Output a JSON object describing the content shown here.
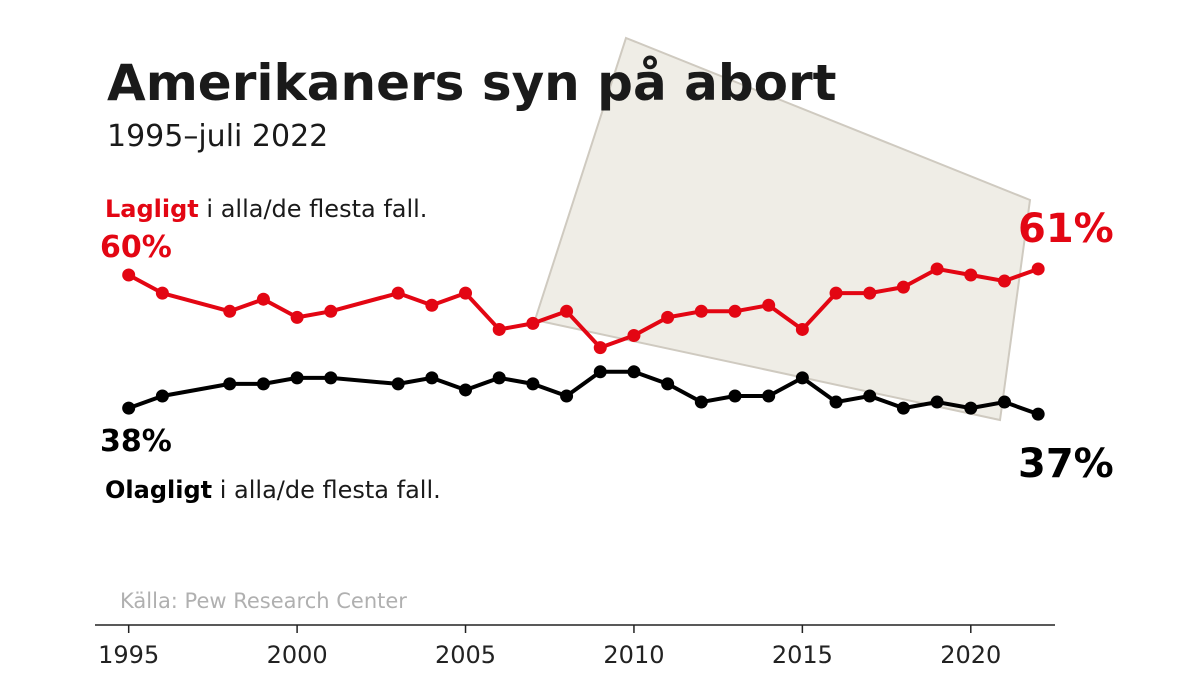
{
  "chart_data": {
    "type": "line",
    "title": "Amerikaners syn på abort",
    "subtitle": "1995–juli 2022",
    "source": "Källa: Pew Research Center",
    "x": [
      1995,
      1996,
      1998,
      1999,
      2000,
      2001,
      2003,
      2004,
      2005,
      2006,
      2007,
      2008,
      2009,
      2010,
      2011,
      2012,
      2013,
      2014,
      2015,
      2016,
      2017,
      2018,
      2019,
      2020,
      2021,
      2022
    ],
    "series": [
      {
        "name": "Lagligt",
        "label_suffix": "i alla/de flesta fall.",
        "color": "#e30613",
        "values": [
          60,
          57,
          54,
          56,
          53,
          54,
          57,
          55,
          57,
          51,
          52,
          54,
          48,
          50,
          53,
          54,
          54,
          55,
          51,
          57,
          57,
          58,
          61,
          60,
          59,
          61
        ],
        "value_labels": [
          "60%",
          null,
          null,
          null,
          null,
          null,
          null,
          null,
          null,
          null,
          null,
          null,
          null,
          null,
          null,
          null,
          null,
          null,
          null,
          null,
          null,
          null,
          null,
          null,
          null,
          "61%"
        ]
      },
      {
        "name": "Olagligt",
        "label_suffix": "i alla/de flesta fall.",
        "color": "#000000",
        "values": [
          38,
          40,
          42,
          42,
          43,
          43,
          42,
          43,
          41,
          43,
          42,
          40,
          44,
          44,
          42,
          39,
          40,
          40,
          43,
          39,
          40,
          38,
          39,
          38,
          39,
          37
        ],
        "value_labels": [
          "38%",
          null,
          null,
          null,
          null,
          null,
          null,
          null,
          null,
          null,
          null,
          null,
          null,
          null,
          null,
          null,
          null,
          null,
          null,
          null,
          null,
          null,
          null,
          null,
          null,
          "37%"
        ]
      }
    ],
    "xlim": [
      1994,
      2022.5
    ],
    "xticks": [
      1995,
      2000,
      2005,
      2010,
      2015,
      2020
    ],
    "ylim": [
      35,
      65
    ],
    "grid": false
  }
}
